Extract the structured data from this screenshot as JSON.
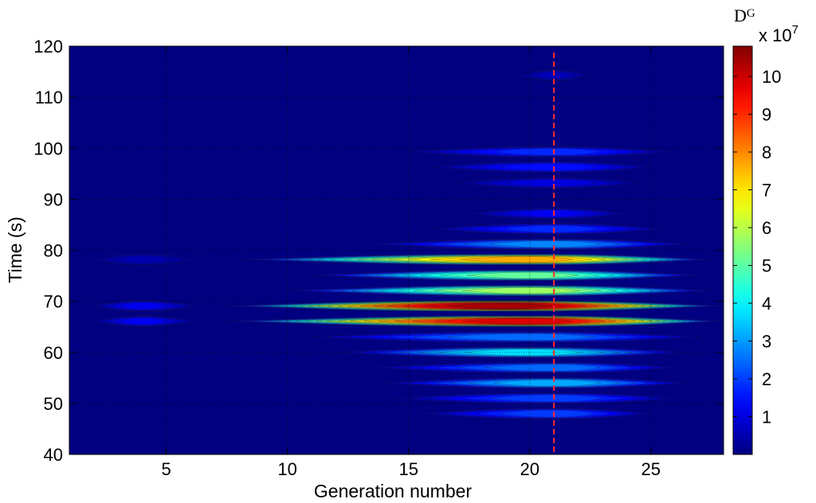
{
  "chart_data": {
    "type": "heatmap",
    "title": "",
    "xlabel": "Generation number",
    "ylabel": "Time (s)",
    "xlim": [
      1,
      28
    ],
    "ylim": [
      40,
      120
    ],
    "xticks": [
      5,
      10,
      15,
      20,
      25
    ],
    "yticks": [
      40,
      50,
      60,
      70,
      80,
      90,
      100,
      110,
      120
    ],
    "grid": true,
    "background_value": 0,
    "colormap": "jet",
    "colorbar": {
      "title": "D",
      "title_superscript": "G",
      "multiplier": "x 10",
      "multiplier_exponent": "7",
      "ticks": [
        1,
        2,
        3,
        4,
        5,
        6,
        7,
        8,
        9,
        10
      ],
      "range": [
        0,
        10.8
      ]
    },
    "marker_line": {
      "x": 21,
      "color": "#ff2a2a",
      "style": "dashed"
    },
    "bands": [
      {
        "t": 114.3,
        "x0": 19.5,
        "x1": 22.5,
        "peak_x": 21,
        "peak": 0.6
      },
      {
        "t": 99.3,
        "x0": 15.0,
        "x1": 25.8,
        "peak_x": 21,
        "peak": 1.8
      },
      {
        "t": 96.3,
        "x0": 16.0,
        "x1": 25.0,
        "peak_x": 21,
        "peak": 1.5
      },
      {
        "t": 93.2,
        "x0": 17.0,
        "x1": 24.5,
        "peak_x": 21,
        "peak": 1.0
      },
      {
        "t": 87.2,
        "x0": 17.5,
        "x1": 24.0,
        "peak_x": 21,
        "peak": 1.2
      },
      {
        "t": 84.2,
        "x0": 16.0,
        "x1": 25.5,
        "peak_x": 21,
        "peak": 1.8
      },
      {
        "t": 81.2,
        "x0": 13.5,
        "x1": 26.5,
        "peak_x": 21,
        "peak": 2.8
      },
      {
        "t": 78.2,
        "x0": 8.0,
        "x1": 27.5,
        "peak_x": 20,
        "peak": 7.8
      },
      {
        "t": 75.1,
        "x0": 11.0,
        "x1": 27.0,
        "peak_x": 20,
        "peak": 5.2
      },
      {
        "t": 72.1,
        "x0": 10.0,
        "x1": 27.5,
        "peak_x": 20,
        "peak": 5.8
      },
      {
        "t": 69.1,
        "x0": 7.5,
        "x1": 28.0,
        "peak_x": 19,
        "peak": 10.6
      },
      {
        "t": 66.1,
        "x0": 7.5,
        "x1": 28.0,
        "peak_x": 20,
        "peak": 10.0
      },
      {
        "t": 63.0,
        "x0": 11.0,
        "x1": 27.0,
        "peak_x": 20,
        "peak": 2.5
      },
      {
        "t": 60.0,
        "x0": 12.0,
        "x1": 26.5,
        "peak_x": 20,
        "peak": 3.8
      },
      {
        "t": 57.0,
        "x0": 13.5,
        "x1": 26.0,
        "peak_x": 21,
        "peak": 2.5
      },
      {
        "t": 54.0,
        "x0": 14.0,
        "x1": 26.5,
        "peak_x": 21,
        "peak": 3.2
      },
      {
        "t": 51.0,
        "x0": 14.5,
        "x1": 26.0,
        "peak_x": 21,
        "peak": 2.0
      },
      {
        "t": 48.0,
        "x0": 15.5,
        "x1": 25.0,
        "peak_x": 21,
        "peak": 2.0
      },
      {
        "t": 78.2,
        "x0": 2.0,
        "x1": 6.2,
        "peak_x": 4,
        "peak": 0.5
      },
      {
        "t": 69.1,
        "x0": 2.0,
        "x1": 6.2,
        "peak_x": 4,
        "peak": 1.2
      },
      {
        "t": 66.1,
        "x0": 2.0,
        "x1": 6.2,
        "peak_x": 4,
        "peak": 1.2
      }
    ]
  }
}
